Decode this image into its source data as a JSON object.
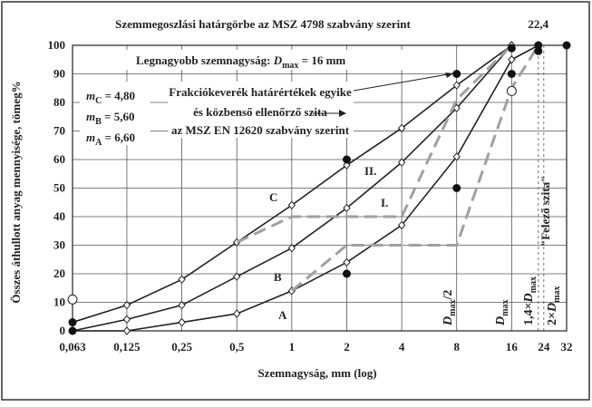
{
  "chart_data": {
    "type": "line",
    "title": "Szemmegoszlási határgörbe az MSZ 4798 szabvány szerint",
    "x_label": "Szemnagyság, mm (log)",
    "y_label": "Összes áthullott anyag mennyisége, tömeg%",
    "log_x": true,
    "grid": true,
    "xlim": [
      0.063,
      32
    ],
    "ylim": [
      0,
      100
    ],
    "xticks": [
      {
        "value": 0.063,
        "label": "0,063"
      },
      {
        "value": 0.125,
        "label": "0,125"
      },
      {
        "value": 0.25,
        "label": "0,25"
      },
      {
        "value": 0.5,
        "label": "0,5"
      },
      1,
      2,
      4,
      8,
      16,
      24,
      32
    ],
    "yticks": [
      0,
      10,
      20,
      30,
      40,
      50,
      60,
      70,
      80,
      90,
      100
    ],
    "top_tick": {
      "value": 22.4,
      "label": "22,4"
    },
    "series": [
      {
        "name": "A",
        "color": "#222222",
        "style": "solid",
        "x": [
          0.063,
          0.125,
          0.25,
          0.5,
          1,
          2,
          4,
          8,
          16,
          22.4
        ],
        "values": [
          0,
          0,
          3,
          6,
          14,
          24,
          37,
          61,
          95,
          100
        ]
      },
      {
        "name": "B",
        "color": "#222222",
        "style": "solid",
        "x": [
          0.063,
          0.125,
          0.25,
          0.5,
          1,
          2,
          4,
          8,
          16
        ],
        "values": [
          0,
          4,
          9,
          19,
          29,
          43,
          59,
          78,
          100
        ]
      },
      {
        "name": "C",
        "color": "#222222",
        "style": "solid",
        "x": [
          0.063,
          0.125,
          0.25,
          0.5,
          1,
          2,
          4,
          8,
          16
        ],
        "values": [
          3,
          9,
          18,
          31,
          44,
          58,
          71,
          86,
          100
        ]
      },
      {
        "name": "II.",
        "color": "#a0a0a0",
        "style": "dashed",
        "x": [
          0.5,
          1,
          4,
          8,
          16
        ],
        "values": [
          31,
          40,
          40,
          81,
          100
        ]
      },
      {
        "name": "I.",
        "color": "#a0a0a0",
        "style": "dashed",
        "x": [
          1,
          2,
          8,
          16,
          22.4
        ],
        "values": [
          14,
          30,
          30,
          85,
          100
        ]
      }
    ],
    "control_points": {
      "color": "#111111",
      "x": [
        0.063,
        0.063,
        2,
        2,
        8,
        8,
        16,
        16,
        22.4,
        22.4,
        32
      ],
      "values": [
        0,
        3,
        20,
        60,
        50,
        90,
        90,
        99,
        98,
        100,
        100
      ]
    },
    "open_points": {
      "x": [
        0.063,
        16
      ],
      "values": [
        11,
        84
      ]
    },
    "dmax_note": [
      "Legnagyobb szemnagyság: ",
      "D",
      "max",
      " = 16 mm"
    ],
    "fineness": [
      [
        "m",
        "C",
        " = 4,80"
      ],
      [
        "m",
        "B",
        " = 5,60"
      ],
      [
        "m",
        "A",
        " = 6,60"
      ]
    ],
    "box_note": [
      "Frakciókeverék határértékek egyike",
      "és közbenső ellenőrző szita",
      "az MSZ EN 12620 szabvány szerint"
    ],
    "vertical_labels": [
      [
        "D",
        "max",
        "/2"
      ],
      [
        "D",
        "max"
      ],
      [
        "1,4×",
        "D",
        "max"
      ],
      [
        "2×",
        "D",
        "max"
      ]
    ],
    "sieve_label": "\"Felező szita\""
  }
}
